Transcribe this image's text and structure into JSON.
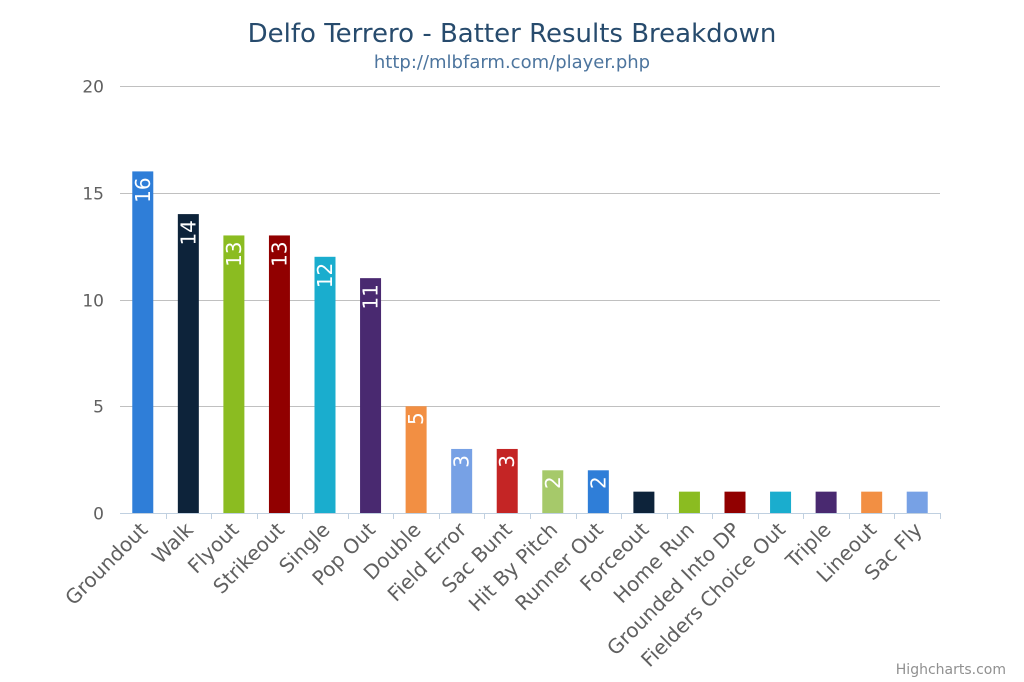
{
  "chart_data": {
    "type": "bar",
    "title": "Delfo Terrero - Batter Results Breakdown",
    "subtitle": "http://mlbfarm.com/player.php",
    "categories": [
      "Groundout",
      "Walk",
      "Flyout",
      "Strikeout",
      "Single",
      "Pop Out",
      "Double",
      "Field Error",
      "Sac Bunt",
      "Hit By Pitch",
      "Runner Out",
      "Forceout",
      "Home Run",
      "Grounded Into DP",
      "Fielders Choice Out",
      "Triple",
      "Lineout",
      "Sac Fly"
    ],
    "values": [
      16,
      14,
      13,
      13,
      12,
      11,
      5,
      3,
      3,
      2,
      2,
      1,
      1,
      1,
      1,
      1,
      1,
      1
    ],
    "colors": [
      "#2f7ed8",
      "#0d233a",
      "#8bbc21",
      "#910000",
      "#1aadce",
      "#492970",
      "#f28f43",
      "#77a1e5",
      "#c42525",
      "#a6c96a",
      "#2f7ed8",
      "#0d233a",
      "#8bbc21",
      "#910000",
      "#1aadce",
      "#492970",
      "#f28f43",
      "#77a1e5"
    ],
    "data_labels_shown_for_min": 2,
    "xlabel": "",
    "ylabel": "",
    "ylim": [
      0,
      20
    ],
    "yticks": [
      0,
      5,
      10,
      15,
      20
    ],
    "grid": true,
    "legend": "none"
  },
  "credit": "Highcharts.com"
}
